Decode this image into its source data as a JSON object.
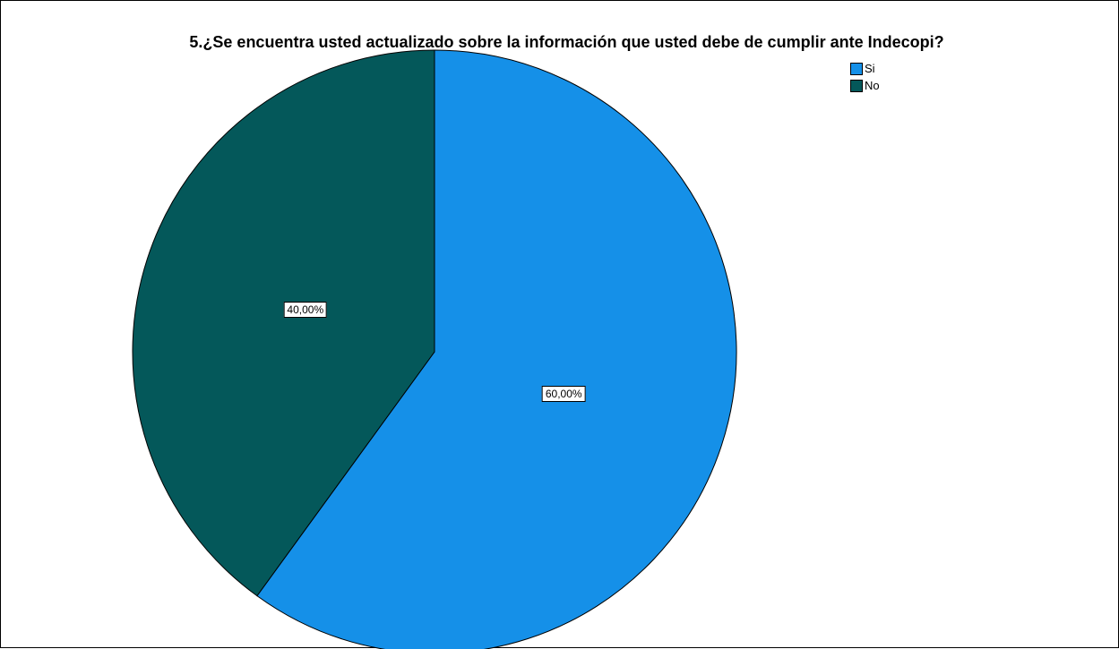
{
  "chart_data": {
    "type": "pie",
    "title": "5.¿Se encuentra usted actualizado sobre la información que usted debe de cumplir ante Indecopi?",
    "slices": [
      {
        "name": "Si",
        "value": 60.0,
        "label": "60,00%",
        "color": "#1590E8"
      },
      {
        "name": "No",
        "value": 40.0,
        "label": "40,00%",
        "color": "#04585A"
      }
    ],
    "legend_position": "top-right",
    "start_angle": "12 o'clock",
    "direction": "clockwise"
  },
  "legend": {
    "items": [
      {
        "label": "Si",
        "color": "#1590E8"
      },
      {
        "label": "No",
        "color": "#04585A"
      }
    ]
  }
}
